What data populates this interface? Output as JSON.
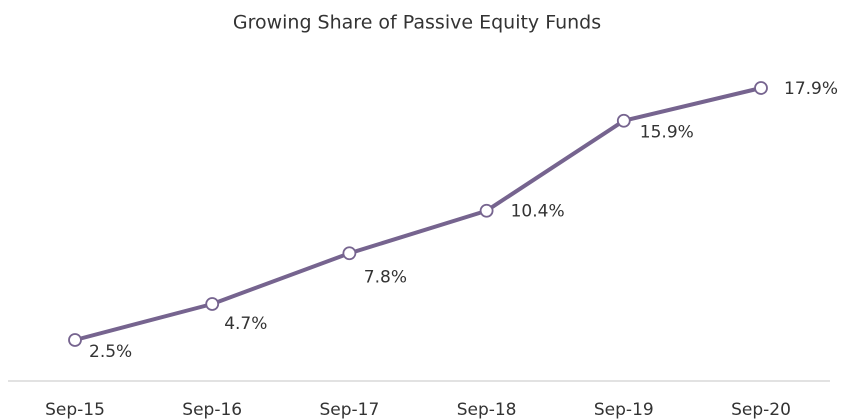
{
  "chart_data": {
    "type": "line",
    "title": "Growing Share of Passive Equity Funds",
    "categories": [
      "Sep-15",
      "Sep-16",
      "Sep-17",
      "Sep-18",
      "Sep-19",
      "Sep-20"
    ],
    "values": [
      2.5,
      4.7,
      7.8,
      10.4,
      15.9,
      17.9
    ],
    "value_labels": [
      "2.5%",
      "4.7%",
      "7.8%",
      "10.4%",
      "15.9%",
      "17.9%"
    ],
    "color": "#76648f"
  }
}
